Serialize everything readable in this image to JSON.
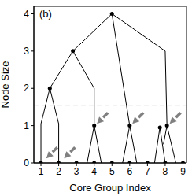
{
  "chart_data": {
    "type": "dendrogram",
    "annotation": "(b)",
    "xlabel": "Core Group Index",
    "ylabel": "Node Size",
    "xlim": [
      0.6,
      9.2
    ],
    "xticks": [
      1,
      2,
      3,
      4,
      5,
      6,
      7,
      8,
      9
    ],
    "ylim": [
      0,
      4.2
    ],
    "yticks": [
      0,
      1,
      2,
      3,
      4
    ],
    "threshold": 1.55,
    "links": [
      [
        [
          1,
          0
        ],
        [
          1,
          1.05
        ],
        [
          1.5,
          2
        ],
        [
          2,
          1.05
        ],
        [
          2,
          0
        ]
      ],
      [
        [
          1.5,
          2
        ],
        [
          2.8,
          3
        ],
        [
          4,
          2
        ],
        [
          4,
          1
        ]
      ],
      [
        [
          3.6,
          0
        ],
        [
          4,
          1
        ],
        [
          4.4,
          0
        ]
      ],
      [
        [
          2.8,
          3
        ],
        [
          5,
          4
        ],
        [
          8,
          3
        ],
        [
          8.1,
          1
        ]
      ],
      [
        [
          5,
          4
        ],
        [
          6,
          1
        ]
      ],
      [
        [
          5.6,
          0
        ],
        [
          6,
          1
        ],
        [
          6.4,
          0
        ]
      ],
      [
        [
          7.4,
          0
        ],
        [
          7.7,
          0.95
        ],
        [
          8,
          0
        ]
      ],
      [
        [
          7.9,
          0.5
        ],
        [
          8.1,
          1
        ],
        [
          8.6,
          0
        ]
      ]
    ],
    "nodes": [
      [
        1,
        0
      ],
      [
        2,
        0
      ],
      [
        3,
        0
      ],
      [
        4,
        0
      ],
      [
        5,
        0
      ],
      [
        6,
        0
      ],
      [
        7,
        0
      ],
      [
        8,
        0
      ],
      [
        9,
        0
      ],
      [
        1.5,
        2
      ],
      [
        2.8,
        3
      ],
      [
        5,
        4
      ],
      [
        4,
        1
      ],
      [
        6,
        1
      ],
      [
        7.7,
        0.95
      ],
      [
        8.1,
        1
      ]
    ],
    "arrows": [
      [
        1.3,
        0.12
      ],
      [
        2.3,
        0.12
      ],
      [
        4.15,
        1.05
      ],
      [
        6.15,
        1.05
      ],
      [
        8.25,
        1.05
      ]
    ]
  }
}
